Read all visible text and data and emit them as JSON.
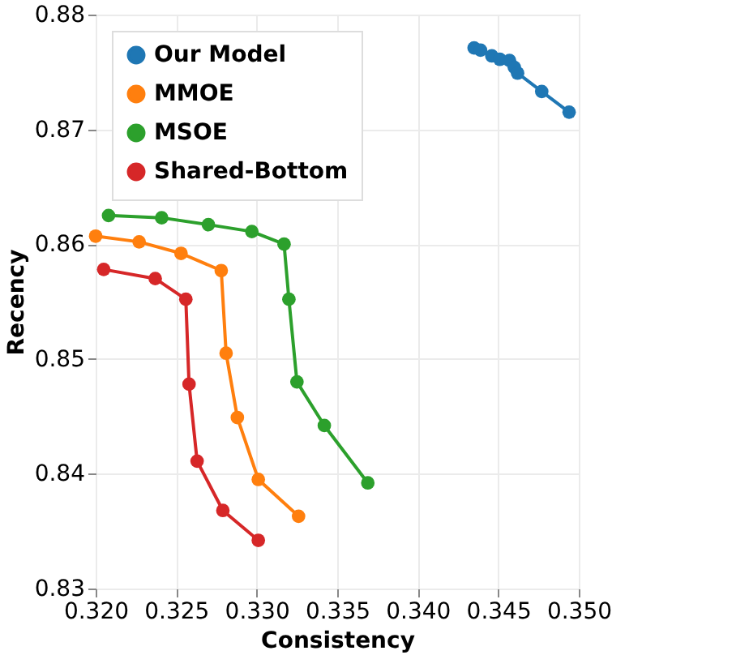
{
  "chart_data": {
    "type": "line",
    "xlabel": "Consistency",
    "ylabel": "Recency",
    "xlim": [
      0.32,
      0.35
    ],
    "ylim": [
      0.83,
      0.88
    ],
    "xticks": [
      {
        "value": 0.32,
        "label": "0.320"
      },
      {
        "value": 0.325,
        "label": "0.325"
      },
      {
        "value": 0.33,
        "label": "0.330"
      },
      {
        "value": 0.335,
        "label": "0.335"
      },
      {
        "value": 0.34,
        "label": "0.340"
      },
      {
        "value": 0.345,
        "label": "0.345"
      },
      {
        "value": 0.35,
        "label": "0.350"
      }
    ],
    "yticks": [
      0.83,
      0.84,
      0.85,
      0.86,
      0.87,
      0.88
    ],
    "grid": true,
    "legend": "top left",
    "marker": "circle",
    "line_style": "solid",
    "series": [
      {
        "name": "Our Model",
        "color": "#1f77b4",
        "x": [
          0.3435,
          0.3439,
          0.3446,
          0.3451,
          0.3457,
          0.346,
          0.3462,
          0.3477,
          0.3494
        ],
        "values": [
          0.8771,
          0.8769,
          0.8764,
          0.8761,
          0.876,
          0.8754,
          0.8749,
          0.8733,
          0.8715
        ]
      },
      {
        "name": "MMOE",
        "color": "#ff7f0e",
        "x": [
          0.32,
          0.3227,
          0.3253,
          0.3278,
          0.3281,
          0.3288,
          0.3301,
          0.3326
        ],
        "values": [
          0.8607,
          0.8602,
          0.8592,
          0.8577,
          0.8505,
          0.8449,
          0.8395,
          0.8363
        ]
      },
      {
        "name": "MSOE",
        "color": "#2ca02c",
        "x": [
          0.3208,
          0.3241,
          0.327,
          0.3297,
          0.3317,
          0.332,
          0.3325,
          0.3342,
          0.3369
        ],
        "values": [
          0.8625,
          0.8623,
          0.8617,
          0.8611,
          0.86,
          0.8552,
          0.848,
          0.8442,
          0.8392
        ]
      },
      {
        "name": "Shared-Bottom",
        "color": "#d62728",
        "x": [
          0.3205,
          0.3237,
          0.3256,
          0.3258,
          0.3263,
          0.3279,
          0.3301
        ],
        "values": [
          0.8578,
          0.857,
          0.8552,
          0.8478,
          0.8411,
          0.8368,
          0.8342
        ]
      }
    ]
  }
}
